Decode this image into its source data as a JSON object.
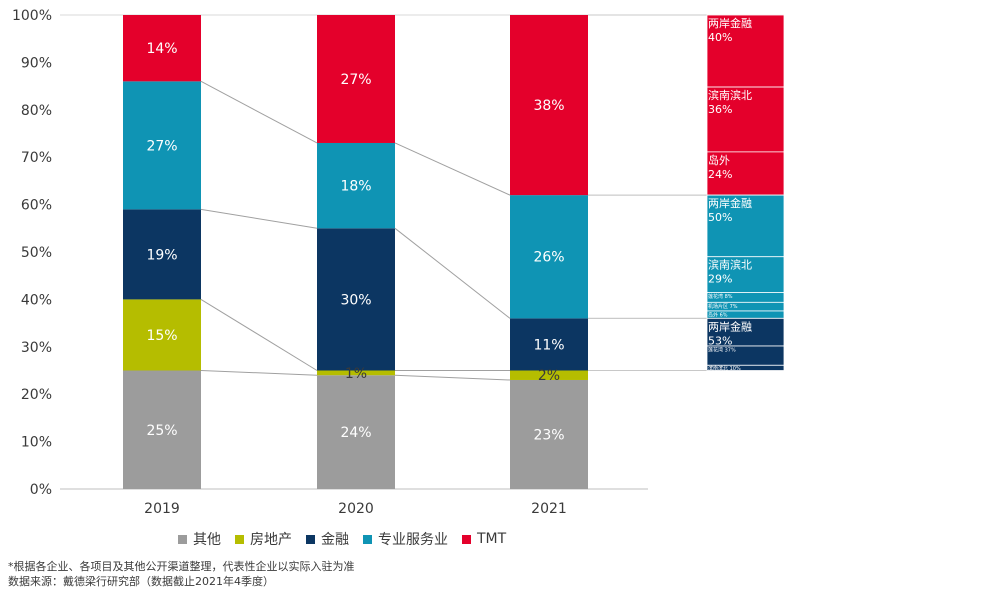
{
  "colors": {
    "其他": "#9c9c9c",
    "房地产": "#b5bd00",
    "金融": "#0c3662",
    "专业服务业": "#0f94b4",
    "TMT": "#e4002b"
  },
  "chart_data": {
    "type": "bar",
    "stacked": true,
    "categories": [
      "2019",
      "2020",
      "2021"
    ],
    "ylim": [
      0,
      100
    ],
    "yticks": [
      "0%",
      "10%",
      "20%",
      "30%",
      "40%",
      "50%",
      "60%",
      "70%",
      "80%",
      "90%",
      "100%"
    ],
    "series": [
      {
        "name": "其他",
        "values": [
          25,
          24,
          23
        ],
        "labels": [
          "25%",
          "24%",
          "23%"
        ]
      },
      {
        "name": "房地产",
        "values": [
          15,
          1,
          2
        ],
        "labels": [
          "15%",
          "1%",
          "2%"
        ]
      },
      {
        "name": "金融",
        "values": [
          19,
          30,
          11
        ],
        "labels": [
          "19%",
          "30%",
          "11%"
        ]
      },
      {
        "name": "专业服务业",
        "values": [
          27,
          18,
          26
        ],
        "labels": [
          "27%",
          "18%",
          "26%"
        ]
      },
      {
        "name": "TMT",
        "values": [
          14,
          27,
          38
        ],
        "labels": [
          "14%",
          "27%",
          "38%"
        ]
      }
    ],
    "breakdown": {
      "TMT": [
        {
          "name": "两岸金融",
          "value": "40%"
        },
        {
          "name": "滨南滨北",
          "value": "36%"
        },
        {
          "name": "岛外",
          "value": "24%"
        }
      ],
      "专业服务业": [
        {
          "name": "两岸金融",
          "value": "50%"
        },
        {
          "name": "滨南滨北",
          "value": "29%"
        },
        {
          "name": "莲花湾",
          "value": "8%",
          "tiny": true
        },
        {
          "name": "机场片区",
          "value": "7%",
          "tiny": true
        },
        {
          "name": "岛外",
          "value": "6%",
          "tiny": true
        }
      ],
      "金融": [
        {
          "name": "两岸金融",
          "value": "53%"
        },
        {
          "name": "莲花湾",
          "value": "37%",
          "tiny": true
        },
        {
          "name": "滨南滨北",
          "value": "10%",
          "tiny": true
        }
      ]
    }
  },
  "legend": [
    "其他",
    "房地产",
    "金融",
    "专业服务业",
    "TMT"
  ],
  "footnotes": [
    "*根据各企业、各项目及其他公开渠道整理，代表性企业以实际入驻为准",
    "数据来源：戴德梁行研究部（数据截止2021年4季度）"
  ]
}
